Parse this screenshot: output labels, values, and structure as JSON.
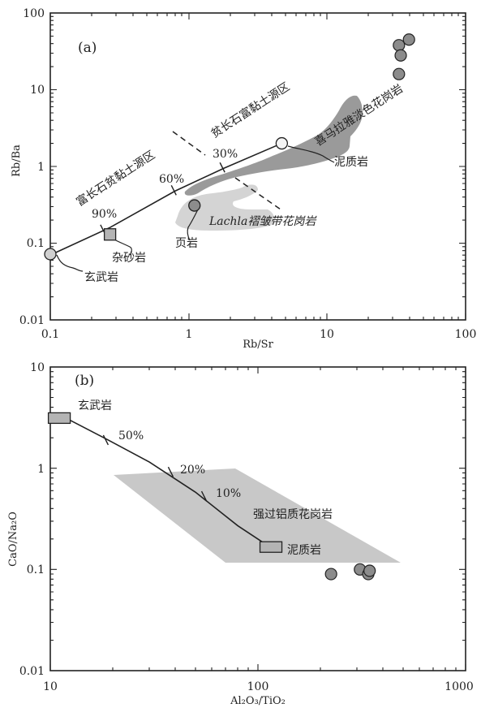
{
  "chart_data": [
    {
      "panel": "(a)",
      "type": "scatter",
      "x_scale": "log",
      "y_scale": "log",
      "xlim": [
        0.1,
        100
      ],
      "ylim": [
        0.01,
        100
      ],
      "xlabel": "Rb/Sr",
      "ylabel": "Rb/Ba",
      "x_tick_labels": [
        "0.1",
        "1",
        "10",
        "100"
      ],
      "y_tick_labels": [
        "0.01",
        "0.1",
        "1",
        "10",
        "100"
      ],
      "mixing_line": {
        "points": [
          [
            0.1,
            0.07
          ],
          [
            0.27,
            0.16
          ],
          [
            0.8,
            0.48
          ],
          [
            1.8,
            0.95
          ],
          [
            4.7,
            2.0
          ]
        ],
        "labels": [
          {
            "text": "90%",
            "at": [
              0.24,
              0.15
            ]
          },
          {
            "text": "60%",
            "at": [
              0.78,
              0.49
            ]
          },
          {
            "text": "30%",
            "at": [
              1.75,
              0.97
            ]
          }
        ]
      },
      "end_members": [
        {
          "name": "玄武岩",
          "x": 0.1,
          "y": 0.072,
          "marker": "circle"
        },
        {
          "name": "泥质岩",
          "x": 4.7,
          "y": 2.0,
          "marker": "circle"
        },
        {
          "name": "杂砂岩",
          "x": 0.27,
          "y": 0.13,
          "marker": "square"
        },
        {
          "name": "页岩",
          "x": 1.1,
          "y": 0.31,
          "marker": "circle"
        }
      ],
      "samples": [
        {
          "x": 33,
          "y": 38
        },
        {
          "x": 39,
          "y": 45
        },
        {
          "x": 34,
          "y": 28
        },
        {
          "x": 33,
          "y": 16
        }
      ],
      "fields": [
        {
          "name": "喜马拉雅淡色花岗岩",
          "color": "#9a9a9a"
        },
        {
          "name": "Lachla褶皱带花岗岩",
          "color": "#d2d2d2"
        }
      ],
      "region_labels": [
        "富长石贫黏土源区",
        "贫长石富黏土源区"
      ]
    },
    {
      "panel": "(b)",
      "type": "scatter",
      "x_scale": "log",
      "y_scale": "log",
      "xlim": [
        10,
        1000
      ],
      "ylim": [
        0.01,
        10
      ],
      "xlabel": "Al₂O₃/TiO₂",
      "ylabel": "CaO/Na₂O",
      "x_tick_labels": [
        "10",
        "100",
        "1000"
      ],
      "y_tick_labels": [
        "0.01",
        "0.1",
        "1",
        "10"
      ],
      "mixing_line": {
        "points": [
          [
            12,
            3.1
          ],
          [
            19,
            1.9
          ],
          [
            30,
            1.15
          ],
          [
            50,
            0.58
          ],
          [
            80,
            0.27
          ],
          [
            115,
            0.165
          ]
        ],
        "labels": [
          {
            "text": "50%",
            "at": [
              18.5,
              1.9
            ]
          },
          {
            "text": "20%",
            "at": [
              38,
              0.92
            ]
          },
          {
            "text": "10%",
            "at": [
              55,
              0.53
            ]
          }
        ]
      },
      "end_members": [
        {
          "name": "玄武岩",
          "x": 11,
          "y": 3.1,
          "marker": "rect"
        },
        {
          "name": "泥质岩",
          "x": 115,
          "y": 0.165,
          "marker": "rect"
        }
      ],
      "samples": [
        {
          "x": 225,
          "y": 0.09
        },
        {
          "x": 310,
          "y": 0.1
        },
        {
          "x": 340,
          "y": 0.09
        },
        {
          "x": 345,
          "y": 0.097
        }
      ],
      "fields": [
        {
          "name": "强过铝质花岗岩",
          "color": "#c8c8c8"
        }
      ]
    }
  ],
  "colors": {
    "marker_fill": "#8c8c8c",
    "square_fill": "#b4b4b4",
    "frame": "#222222"
  }
}
